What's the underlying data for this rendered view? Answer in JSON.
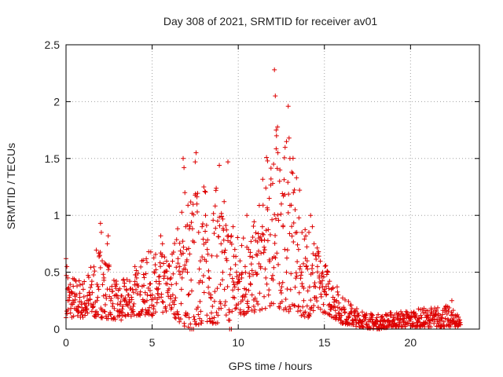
{
  "chart_data": {
    "type": "scatter",
    "title": "Day 308 of 2021, SRMTID for receiver av01",
    "xlabel": "GPS time / hours",
    "ylabel": "SRMTID / TECUs",
    "xlim": [
      0,
      24
    ],
    "ylim": [
      0,
      2.5
    ],
    "xticks": [
      0,
      5,
      10,
      15,
      20
    ],
    "xtick_labels": [
      "0",
      "5",
      "10",
      "15",
      "20"
    ],
    "yticks": [
      0,
      0.5,
      1,
      1.5,
      2,
      2.5
    ],
    "ytick_labels": [
      "0",
      "0.5",
      "1",
      "1.5",
      "2",
      "2.5"
    ],
    "grid": true,
    "marker": "+",
    "color": "#dd0000",
    "series": [
      {
        "name": "av01",
        "points": [
          [
            0.0,
            0.62
          ],
          [
            0.05,
            0.55
          ],
          [
            0.1,
            0.45
          ],
          [
            0.15,
            0.35
          ],
          [
            0.2,
            0.28
          ],
          [
            0.3,
            0.22
          ],
          [
            0.4,
            0.25
          ],
          [
            0.5,
            0.18
          ],
          [
            0.6,
            0.3
          ],
          [
            0.7,
            0.2
          ],
          [
            0.8,
            0.28
          ],
          [
            0.9,
            0.15
          ],
          [
            1.0,
            0.35
          ],
          [
            1.1,
            0.22
          ],
          [
            1.2,
            0.18
          ],
          [
            1.3,
            0.25
          ],
          [
            1.4,
            0.3
          ],
          [
            1.5,
            0.42
          ],
          [
            1.6,
            0.2
          ],
          [
            1.7,
            0.15
          ],
          [
            1.8,
            0.25
          ],
          [
            1.9,
            0.35
          ],
          [
            2.0,
            0.93
          ],
          [
            2.05,
            0.85
          ],
          [
            2.1,
            0.6
          ],
          [
            2.2,
            0.45
          ],
          [
            2.3,
            0.3
          ],
          [
            2.4,
            0.75
          ],
          [
            2.45,
            0.82
          ],
          [
            2.5,
            0.55
          ],
          [
            2.6,
            0.25
          ],
          [
            2.7,
            0.2
          ],
          [
            2.8,
            0.18
          ],
          [
            2.9,
            0.3
          ],
          [
            3.0,
            0.22
          ],
          [
            3.1,
            0.12
          ],
          [
            3.2,
            0.08
          ],
          [
            3.3,
            0.2
          ],
          [
            3.4,
            0.25
          ],
          [
            3.5,
            0.35
          ],
          [
            3.6,
            0.3
          ],
          [
            3.7,
            0.42
          ],
          [
            3.8,
            0.28
          ],
          [
            3.9,
            0.2
          ],
          [
            4.0,
            0.55
          ],
          [
            4.1,
            0.45
          ],
          [
            4.2,
            0.38
          ],
          [
            4.3,
            0.3
          ],
          [
            4.4,
            0.6
          ],
          [
            4.5,
            0.48
          ],
          [
            4.6,
            0.32
          ],
          [
            4.7,
            0.25
          ],
          [
            4.8,
            0.68
          ],
          [
            4.9,
            0.4
          ],
          [
            5.0,
            0.3
          ],
          [
            5.1,
            0.2
          ],
          [
            5.2,
            0.15
          ],
          [
            5.3,
            0.35
          ],
          [
            5.4,
            0.28
          ],
          [
            5.5,
            0.82
          ],
          [
            5.6,
            0.75
          ],
          [
            5.7,
            0.5
          ],
          [
            5.8,
            0.4
          ],
          [
            5.9,
            0.32
          ],
          [
            6.0,
            0.55
          ],
          [
            6.1,
            0.45
          ],
          [
            6.2,
            0.3
          ],
          [
            6.3,
            0.25
          ],
          [
            6.4,
            0.4
          ],
          [
            6.5,
            0.62
          ],
          [
            6.6,
            0.55
          ],
          [
            6.7,
            0.35
          ],
          [
            6.8,
            1.5
          ],
          [
            6.85,
            1.42
          ],
          [
            6.9,
            1.2
          ],
          [
            6.95,
            0.9
          ],
          [
            7.0,
            0.7
          ],
          [
            7.05,
            0.5
          ],
          [
            7.1,
            0.3
          ],
          [
            7.15,
            0.1
          ],
          [
            7.2,
            0.0
          ],
          [
            7.3,
            0.0
          ],
          [
            7.4,
            0.0
          ],
          [
            7.5,
            1.47
          ],
          [
            7.55,
            1.55
          ],
          [
            7.6,
            1.1
          ],
          [
            7.7,
            0.85
          ],
          [
            7.8,
            0.6
          ],
          [
            7.9,
            0.9
          ],
          [
            8.0,
            1.25
          ],
          [
            8.1,
            1.0
          ],
          [
            8.2,
            0.7
          ],
          [
            8.3,
            0.45
          ],
          [
            8.4,
            0.3
          ],
          [
            8.5,
            0.2
          ],
          [
            8.6,
            0.1
          ],
          [
            8.7,
            1.22
          ],
          [
            8.8,
            0.95
          ],
          [
            8.9,
            1.44
          ],
          [
            9.0,
            0.75
          ],
          [
            9.1,
            0.5
          ],
          [
            9.2,
            0.35
          ],
          [
            9.3,
            0.62
          ],
          [
            9.4,
            1.47
          ],
          [
            9.5,
            0.0
          ],
          [
            9.6,
            0.0
          ],
          [
            9.7,
            0.9
          ],
          [
            9.8,
            0.7
          ],
          [
            9.9,
            0.5
          ],
          [
            10.0,
            0.35
          ],
          [
            10.1,
            0.6
          ],
          [
            10.2,
            0.45
          ],
          [
            10.3,
            0.8
          ],
          [
            10.4,
            0.55
          ],
          [
            10.5,
            1.0
          ],
          [
            10.6,
            0.7
          ],
          [
            10.7,
            0.4
          ],
          [
            10.8,
            0.3
          ],
          [
            10.9,
            0.2
          ],
          [
            11.0,
            0.5
          ],
          [
            11.1,
            0.65
          ],
          [
            11.2,
            0.8
          ],
          [
            11.3,
            0.55
          ],
          [
            11.4,
            0.9
          ],
          [
            11.5,
            0.72
          ],
          [
            11.6,
            0.45
          ],
          [
            11.7,
            1.05
          ],
          [
            11.8,
            1.15
          ],
          [
            11.9,
            1.32
          ],
          [
            12.0,
            1.28
          ],
          [
            12.05,
            1.45
          ],
          [
            12.1,
            2.28
          ],
          [
            12.15,
            2.05
          ],
          [
            12.2,
            1.75
          ],
          [
            12.3,
            1.55
          ],
          [
            12.4,
            1.3
          ],
          [
            12.5,
            1.1
          ],
          [
            12.6,
            0.9
          ],
          [
            12.7,
            0.7
          ],
          [
            12.8,
            0.5
          ],
          [
            12.9,
            1.96
          ],
          [
            12.95,
            1.68
          ],
          [
            13.0,
            1.5
          ],
          [
            13.1,
            1.38
          ],
          [
            13.2,
            1.2
          ],
          [
            13.3,
            1.05
          ],
          [
            13.4,
            0.85
          ],
          [
            13.5,
            0.7
          ],
          [
            13.6,
            0.55
          ],
          [
            13.7,
            0.4
          ],
          [
            13.8,
            0.25
          ],
          [
            13.9,
            0.15
          ],
          [
            14.0,
            0.6
          ],
          [
            14.1,
            0.85
          ],
          [
            14.2,
            1.0
          ],
          [
            14.3,
            0.9
          ],
          [
            14.4,
            0.75
          ],
          [
            14.5,
            0.65
          ],
          [
            14.6,
            0.55
          ],
          [
            14.7,
            0.45
          ],
          [
            14.8,
            0.4
          ],
          [
            14.9,
            0.5
          ],
          [
            15.0,
            0.35
          ],
          [
            15.1,
            0.3
          ],
          [
            15.2,
            0.5
          ],
          [
            15.3,
            0.42
          ],
          [
            15.4,
            0.35
          ],
          [
            15.5,
            0.28
          ],
          [
            15.6,
            0.2
          ],
          [
            15.7,
            0.25
          ],
          [
            15.8,
            0.3
          ],
          [
            15.9,
            0.18
          ],
          [
            16.0,
            0.12
          ],
          [
            16.2,
            0.15
          ],
          [
            16.4,
            0.1
          ],
          [
            16.6,
            0.18
          ],
          [
            16.8,
            0.08
          ],
          [
            17.0,
            0.12
          ],
          [
            17.2,
            0.15
          ],
          [
            17.4,
            0.1
          ],
          [
            17.6,
            0.08
          ],
          [
            17.8,
            0.12
          ],
          [
            18.0,
            0.05
          ],
          [
            18.2,
            0.0
          ],
          [
            18.4,
            0.08
          ],
          [
            18.6,
            0.12
          ],
          [
            18.8,
            0.06
          ],
          [
            19.0,
            0.1
          ],
          [
            19.2,
            0.04
          ],
          [
            19.4,
            0.08
          ],
          [
            19.6,
            0.12
          ],
          [
            19.8,
            0.05
          ],
          [
            20.0,
            0.1
          ],
          [
            20.2,
            0.15
          ],
          [
            20.4,
            0.08
          ],
          [
            20.6,
            0.12
          ],
          [
            20.8,
            0.05
          ],
          [
            21.0,
            0.1
          ],
          [
            21.2,
            0.15
          ],
          [
            21.4,
            0.08
          ],
          [
            21.6,
            0.12
          ],
          [
            21.8,
            0.1
          ],
          [
            22.0,
            0.15
          ],
          [
            22.2,
            0.08
          ],
          [
            22.4,
            0.25
          ],
          [
            22.6,
            0.12
          ],
          [
            22.8,
            0.05
          ]
        ],
        "envelope": [
          [
            0,
            0.1,
            0.6
          ],
          [
            1,
            0.1,
            0.5
          ],
          [
            2,
            0.1,
            0.9
          ],
          [
            3,
            0.08,
            0.45
          ],
          [
            4,
            0.12,
            0.6
          ],
          [
            5,
            0.12,
            0.8
          ],
          [
            6,
            0.15,
            0.75
          ],
          [
            7,
            0.0,
            1.5
          ],
          [
            8,
            0.05,
            1.5
          ],
          [
            9,
            0.05,
            1.45
          ],
          [
            10,
            0.1,
            1.0
          ],
          [
            11,
            0.15,
            1.1
          ],
          [
            12,
            0.2,
            2.2
          ],
          [
            13,
            0.15,
            1.9
          ],
          [
            14,
            0.1,
            1.05
          ],
          [
            15,
            0.15,
            0.7
          ],
          [
            16,
            0.05,
            0.35
          ],
          [
            17,
            0.02,
            0.2
          ],
          [
            18,
            0.0,
            0.15
          ],
          [
            19,
            0.02,
            0.18
          ],
          [
            20,
            0.02,
            0.2
          ],
          [
            21,
            0.02,
            0.22
          ],
          [
            22,
            0.02,
            0.25
          ],
          [
            22.9,
            0.02,
            0.15
          ]
        ]
      }
    ]
  }
}
